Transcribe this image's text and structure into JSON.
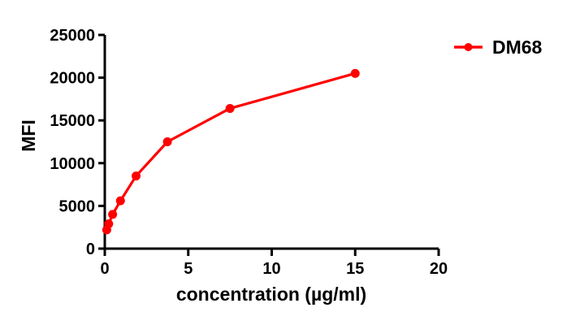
{
  "chart_data": {
    "type": "line",
    "xlabel": "concentration (µg/ml)",
    "ylabel": "MFI",
    "xlim": [
      0,
      20
    ],
    "ylim": [
      0,
      25000
    ],
    "xticks": [
      0,
      5,
      10,
      15,
      20
    ],
    "yticks": [
      0,
      5000,
      10000,
      15000,
      20000,
      25000
    ],
    "grid": false,
    "legend_position": "top-right-outside",
    "axis_color": "#000000",
    "series": [
      {
        "name": "DM68",
        "color": "#ff0000",
        "marker": "circle",
        "x": [
          0.117,
          0.234,
          0.469,
          0.938,
          1.875,
          3.75,
          7.5,
          15
        ],
        "y": [
          2200,
          2900,
          4000,
          5600,
          8500,
          12500,
          16400,
          20500
        ]
      }
    ]
  }
}
